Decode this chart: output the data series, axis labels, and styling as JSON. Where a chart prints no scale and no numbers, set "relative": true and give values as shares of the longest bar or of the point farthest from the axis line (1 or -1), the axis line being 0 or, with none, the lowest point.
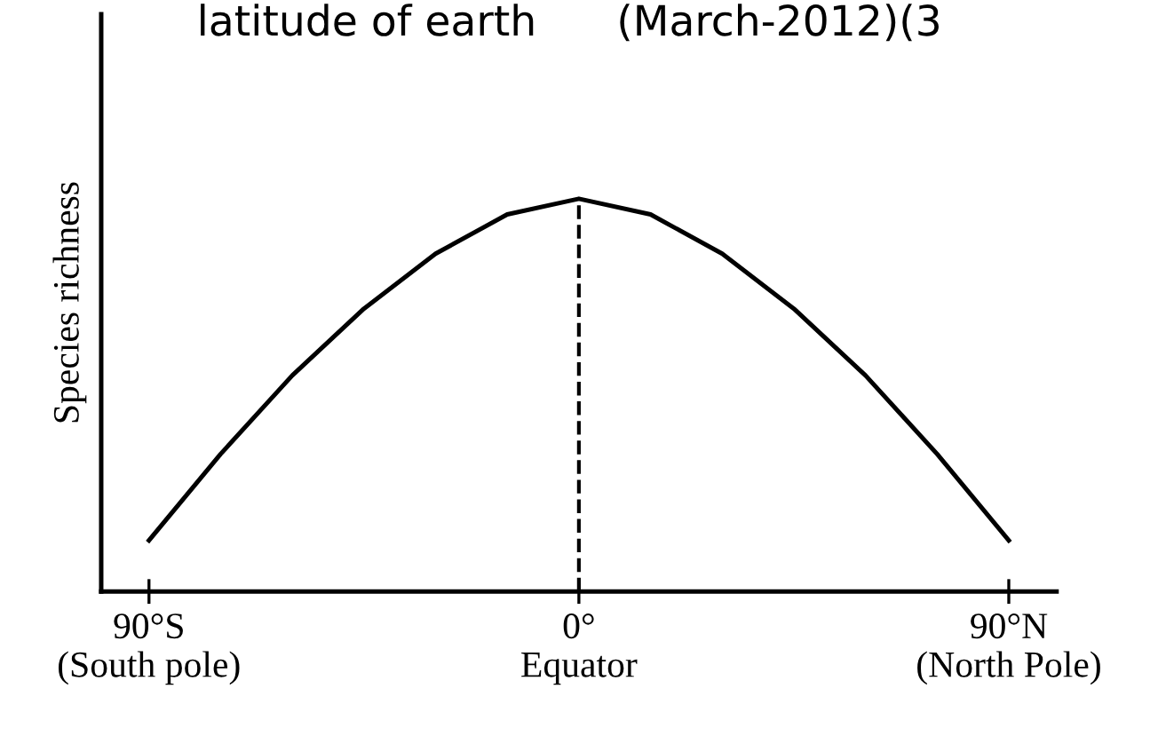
{
  "chart_data": {
    "type": "line",
    "title": "latitude of earth      (March-2012)(3",
    "ylabel": "Species richness",
    "relative": true,
    "x": [
      -90,
      -75,
      -60,
      -45,
      -30,
      -15,
      0,
      15,
      30,
      45,
      60,
      75,
      90
    ],
    "series": [
      {
        "color": "#000000",
        "values": [
          0.13,
          0.35,
          0.55,
          0.72,
          0.86,
          0.96,
          1,
          0.96,
          0.86,
          0.72,
          0.55,
          0.35,
          0.13
        ]
      }
    ],
    "xlim": [
      -100,
      100
    ],
    "xticks": [
      {
        "value": -90,
        "label": "90°S\n(South pole)"
      },
      {
        "value": 0,
        "label": "0°\nEquator"
      },
      {
        "value": 90,
        "label": "90°N\n(North Pole)"
      }
    ],
    "ref_lines": [
      {
        "axis": "x",
        "value": 0,
        "color": "#000000",
        "line_style": "dashed"
      }
    ],
    "grid": false,
    "legend": false,
    "marker": "none",
    "line_style": "solid"
  }
}
